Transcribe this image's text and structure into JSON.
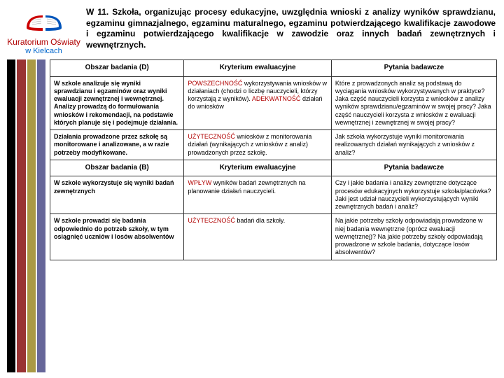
{
  "logo": {
    "label": "Kuratorium Oświaty",
    "sublabel": "w Kielcach",
    "book_color_left": "#cc0000",
    "book_color_right": "#0055bb",
    "pages_color": "#ffffff"
  },
  "title": "W 11. Szkoła, organizując procesy edukacyjne, uwzględnia wnioski z analizy wyników sprawdzianu, egzaminu gimnazjalnego, egzaminu maturalnego, egzaminu potwierdzającego kwalifikacje zawodowe i egzaminu potwierdzającego kwalifikacje w zawodzie oraz innych badań zewnętrznych i wewnętrznych.",
  "stripes": [
    "#000000",
    "#993333",
    "#aa9944",
    "#666699"
  ],
  "headersD": {
    "obszar": "Obszar badania (D)",
    "kryt": "Kryterium ewaluacyjne",
    "pyt": "Pytania badawcze"
  },
  "rowsD": [
    {
      "obszar": "W szkole analizuje się wyniki sprawdzianu i egzaminów oraz wyniki ewaluacji zewnętrznej i wewnętrznej. Analizy prowadzą do formułowania wniosków i rekomendacji, na podstawie których planuje się i podejmuje działania.",
      "kryt_parts": [
        {
          "text": "POWSZECHNOŚĆ",
          "color": "#b00000"
        },
        {
          "text": " wykorzystywania wniosków w działaniach (chodzi o liczbę nauczycieli, którzy korzystają z wyników). ",
          "color": "#000"
        },
        {
          "text": "ADEKWATNOŚĆ",
          "color": "#b00000"
        },
        {
          "text": " działań do wniosków",
          "color": "#000"
        }
      ],
      "pyt": "Które z prowadzonych analiz są podstawą do wyciągania wniosków wykorzystywanych w praktyce? Jaka część nauczycieli korzysta z wniosków z analizy wyników sprawdzianu/egzaminów w swojej pracy? Jaka część nauczycieli korzysta z wniosków z ewaluacji wewnętrznej i zewnętrznej w swojej pracy?"
    },
    {
      "obszar": "Działania prowadzone przez szkołę są monitorowane i analizowane, a w razie potrzeby modyfikowane.",
      "kryt_parts": [
        {
          "text": "UŻYTECZNOŚĆ",
          "color": "#b00000"
        },
        {
          "text": " wniosków z monitorowania działań (wynikających z wniosków z analiz) prowadzonych przez szkołę.",
          "color": "#000"
        }
      ],
      "pyt": "Jak szkoła wykorzystuje wyniki monitorowania realizowanych działań wynikających z wniosków z analiz?"
    }
  ],
  "headersB": {
    "obszar": "Obszar badania (B)",
    "kryt": "Kryterium ewaluacyjne",
    "pyt": "Pytania badawcze"
  },
  "rowsB": [
    {
      "obszar": "W szkole wykorzystuje się wyniki badań zewnętrznych",
      "kryt_parts": [
        {
          "text": "WPŁYW",
          "color": "#b00000"
        },
        {
          "text": " wyników badań zewnętrznych na planowanie działań nauczycieli.",
          "color": "#000"
        }
      ],
      "pyt": "Czy i jakie badania i analizy zewnętrzne dotyczące procesów edukacyjnych wykorzystuje szkoła/placówka? Jaki jest udział nauczycieli wykorzystujących wyniki zewnętrznych badań i analiz?"
    },
    {
      "obszar": "W szkole prowadzi się badania odpowiednio do potrzeb szkoły, w tym osiągnięć uczniów i losów absolwentów",
      "kryt_parts": [
        {
          "text": "UŻYTECZNOŚĆ",
          "color": "#b00000"
        },
        {
          "text": " badań dla szkoły.",
          "color": "#000"
        }
      ],
      "pyt": "Na jakie potrzeby szkoły odpowiadają prowadzone w niej badania wewnętrzne (oprócz ewaluacji wewnętrznej)? Na jakie potrzeby szkoły odpowiadają prowadzone w szkole badania, dotyczące losów absolwentów?"
    }
  ]
}
